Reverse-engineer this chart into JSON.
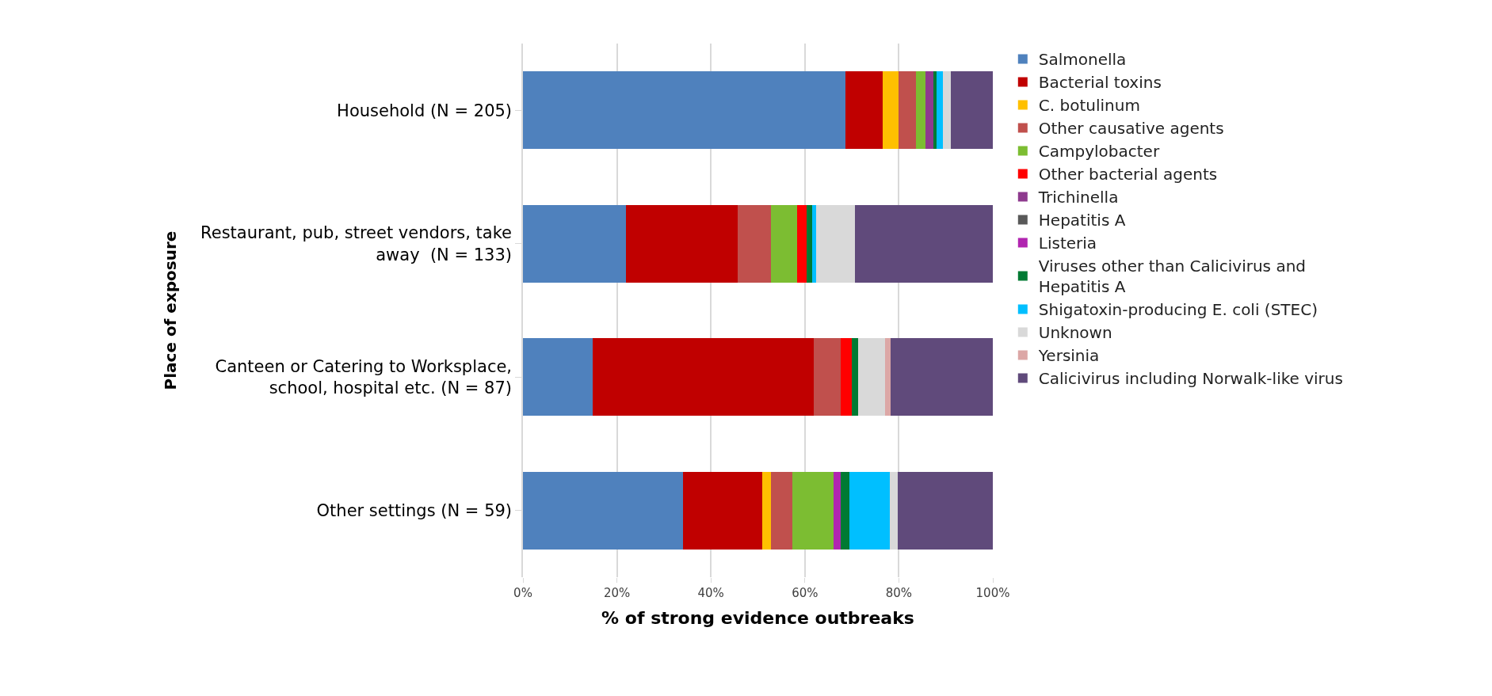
{
  "chart_data": {
    "type": "bar",
    "orientation": "horizontal",
    "stacked": true,
    "xlabel": "% of strong evidence outbreaks",
    "ylabel": "Place of exposure",
    "categories": [
      "Household (N = 205)",
      "Restaurant, pub, street vendors, take\naway  (N = 133)",
      "Canteen or Catering to Worksplace,\nschool, hospital etc. (N = 87)",
      "Other settings (N = 59)"
    ],
    "series": [
      {
        "name": "Salmonella",
        "color": "#4f81bd",
        "values": [
          68.6,
          22.0,
          14.9,
          34.1
        ]
      },
      {
        "name": "Bacterial toxins",
        "color": "#c00000",
        "values": [
          8.0,
          23.7,
          47.0,
          16.8
        ]
      },
      {
        "name": "C. botulinum",
        "color": "#ffc000",
        "values": [
          3.3,
          null,
          null,
          1.9
        ]
      },
      {
        "name": "Other causative agents",
        "color": "#c0504d",
        "values": [
          3.8,
          7.1,
          5.7,
          4.6
        ]
      },
      {
        "name": "Campylobacter",
        "color": "#7cbd32",
        "values": [
          1.9,
          5.6,
          null,
          8.7
        ]
      },
      {
        "name": "Other bacterial agents",
        "color": "#ff0000",
        "values": [
          null,
          1.9,
          2.4,
          null
        ]
      },
      {
        "name": "Trichinella",
        "color": "#8e3a8e",
        "values": [
          1.7,
          null,
          null,
          null
        ]
      },
      {
        "name": "Hepatitis A",
        "color": "#595959",
        "values": [
          null,
          null,
          null,
          null
        ]
      },
      {
        "name": "Listeria",
        "color": "#b125b0",
        "values": [
          null,
          null,
          null,
          1.5
        ]
      },
      {
        "name": "Viruses other than Calicivirus and\nHepatitis A",
        "color": "#007a33",
        "values": [
          0.8,
          1.3,
          1.3,
          1.9
        ]
      },
      {
        "name": "Shigatoxin-producing E. coli (STEC)",
        "color": "#00bfff",
        "values": [
          1.2,
          0.8,
          null,
          8.5
        ]
      },
      {
        "name": "Unknown",
        "color": "#d9d9d9",
        "values": [
          1.7,
          8.2,
          5.7,
          1.7
        ]
      },
      {
        "name": "Yersinia",
        "color": "#dca7a6",
        "values": [
          null,
          null,
          1.2,
          null
        ]
      },
      {
        "name": "Calicivirus including Norwalk-like virus",
        "color": "#604a7b",
        "values": [
          9.1,
          29.4,
          21.8,
          20.3
        ]
      }
    ],
    "xlim": [
      0,
      100
    ],
    "xticks": [
      {
        "value": 0,
        "label": "0%"
      },
      {
        "value": 20,
        "label": "20%"
      },
      {
        "value": 40,
        "label": "40%"
      },
      {
        "value": 60,
        "label": "60%"
      },
      {
        "value": 80,
        "label": "80%"
      },
      {
        "value": 100,
        "label": "100%"
      }
    ],
    "grid": "x",
    "legend": "right"
  }
}
